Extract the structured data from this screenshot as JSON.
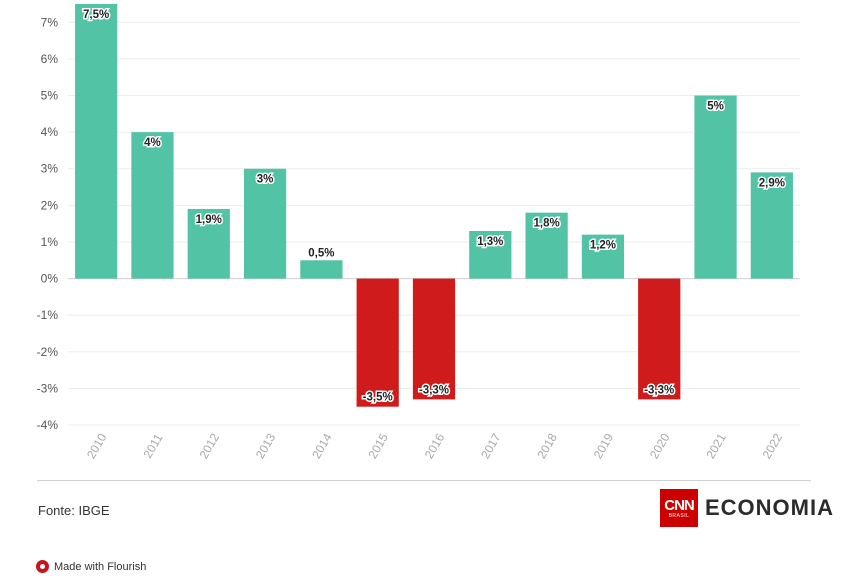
{
  "chart_data": {
    "type": "bar",
    "categories": [
      "2010",
      "2011",
      "2012",
      "2013",
      "2014",
      "2015",
      "2016",
      "2017",
      "2018",
      "2019",
      "2020",
      "2021",
      "2022"
    ],
    "values": [
      7.5,
      4,
      1.9,
      3,
      0.5,
      -3.5,
      -3.3,
      1.3,
      1.8,
      1.2,
      -3.3,
      5,
      2.9
    ],
    "data_labels": [
      "7,5%",
      "4%",
      "1,9%",
      "3%",
      "0,5%",
      "-3,5%",
      "-3,3%",
      "1,3%",
      "1,8%",
      "1,2%",
      "-3,3%",
      "5%",
      "2,9%"
    ],
    "y_ticks": [
      -4,
      -3,
      -2,
      -1,
      0,
      1,
      2,
      3,
      4,
      5,
      6,
      7
    ],
    "y_tick_labels": [
      "-4%",
      "-3%",
      "-2%",
      "-1%",
      "0%",
      "1%",
      "2%",
      "3%",
      "4%",
      "5%",
      "6%",
      "7%"
    ],
    "ylim": [
      -4,
      7.5
    ],
    "grid": true,
    "positive_color": "#52c3a5",
    "negative_color": "#cf1b1b"
  },
  "footer": {
    "source": "Fonte: IBGE",
    "logo_cnn": "CNN",
    "logo_brasil": "BRASIL",
    "logo_economia": "ECONOMIA",
    "made_with": "Made with Flourish"
  }
}
